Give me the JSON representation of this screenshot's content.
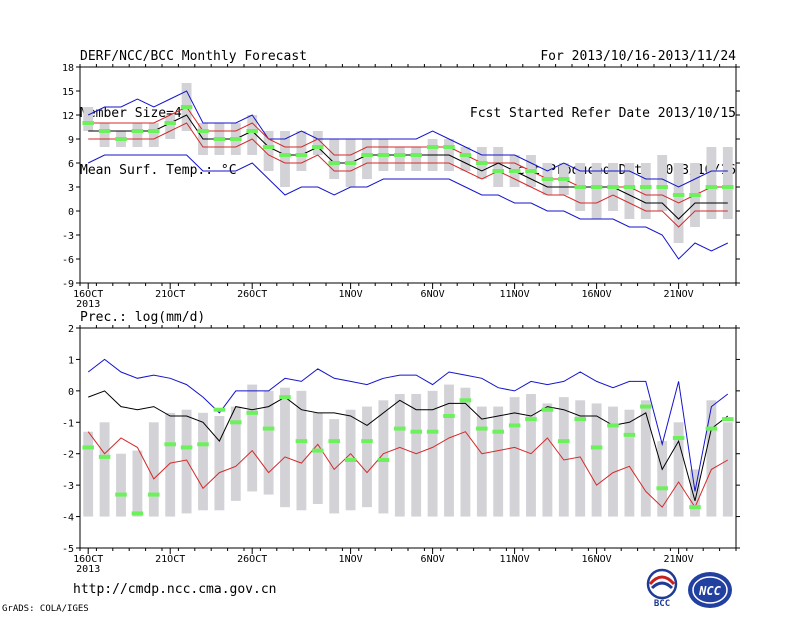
{
  "header": {
    "title": "DERF/NCC/BCC Monthly Forecast",
    "member_size": "Member Size=40",
    "variable": "Mean Surf. Temp.: °C",
    "forecast_period": "For 2013/10/16-2013/11/24",
    "started": "Fcst Started Refer Date 2013/10/15",
    "produced": "Fcst Produced Date 2013/10/16"
  },
  "footer": {
    "url": "http://cmdp.ncc.cma.gov.cn",
    "credit": "GrADS: COLA/IGES",
    "logo_bcc": "BCC",
    "logo_ncc": "NCC"
  },
  "colors": {
    "bar": "#d3d3d7",
    "median": "#000000",
    "band_inner": "#d42a2a",
    "band_outer": "#1414cc",
    "observed": "#6cf05c"
  },
  "chart_data": [
    {
      "type": "line",
      "title": "",
      "ylabel": "Mean Surf. Temp.: °C",
      "ylim": [
        -9,
        18
      ],
      "yticks": [
        -9,
        -6,
        -3,
        0,
        3,
        6,
        9,
        12,
        15,
        18
      ],
      "xticks": [
        {
          "day": 0,
          "label": "16OCT",
          "sublabel": "2013"
        },
        {
          "day": 5,
          "label": "21OCT"
        },
        {
          "day": 10,
          "label": "26OCT"
        },
        {
          "day": 16,
          "label": "1NOV"
        },
        {
          "day": 21,
          "label": "6NOV"
        },
        {
          "day": 26,
          "label": "11NOV"
        },
        {
          "day": 31,
          "label": "16NOV"
        },
        {
          "day": 36,
          "label": "21NOV"
        }
      ],
      "days": 40,
      "grid": false,
      "series": [
        {
          "key": "bar_high",
          "values": [
            13,
            11,
            10,
            11,
            11,
            12,
            16,
            11,
            11,
            11,
            12,
            10,
            10,
            10,
            10,
            9,
            9,
            9,
            9,
            8,
            8,
            9,
            9,
            8,
            8,
            8,
            7,
            7,
            6,
            6,
            6,
            6,
            6,
            6,
            6,
            7,
            6,
            6,
            8,
            8
          ]
        },
        {
          "key": "bar_low",
          "values": [
            10,
            8,
            8,
            8,
            8,
            9,
            10,
            7,
            7,
            7,
            7,
            5,
            3,
            5,
            7,
            4,
            3,
            4,
            5,
            5,
            5,
            5,
            5,
            5,
            4,
            3,
            3,
            3,
            2,
            2,
            0,
            -1,
            0,
            -1,
            -1,
            0,
            -4,
            -2,
            -1,
            -1
          ]
        },
        {
          "key": "median",
          "values": [
            10,
            10,
            10,
            10,
            10,
            11,
            12,
            9,
            9,
            9,
            10,
            8,
            7,
            7,
            8,
            6,
            6,
            7,
            7,
            7,
            7,
            7,
            7,
            6,
            5,
            6,
            5,
            4,
            3,
            3,
            3,
            3,
            3,
            2,
            1,
            1,
            -1,
            1,
            1,
            1
          ]
        },
        {
          "key": "inner_upper",
          "values": [
            11,
            11,
            11,
            11,
            11,
            12,
            13,
            10,
            10,
            10,
            11,
            9,
            8,
            8,
            9,
            7,
            7,
            8,
            8,
            8,
            8,
            8,
            8,
            7,
            6,
            6,
            6,
            5,
            4,
            4,
            3,
            3,
            3,
            3,
            2,
            2,
            1,
            2,
            3,
            3
          ]
        },
        {
          "key": "inner_lower",
          "values": [
            9,
            9,
            9,
            9,
            9,
            10,
            11,
            8,
            8,
            8,
            9,
            7,
            6,
            6,
            7,
            5,
            5,
            6,
            6,
            6,
            6,
            6,
            6,
            5,
            4,
            5,
            4,
            3,
            2,
            2,
            1,
            1,
            2,
            1,
            0,
            0,
            -2,
            0,
            0,
            0
          ]
        },
        {
          "key": "outer_upper",
          "values": [
            12,
            13,
            13,
            14,
            13,
            14,
            15,
            11,
            11,
            11,
            12,
            9,
            9,
            10,
            9,
            9,
            9,
            9,
            9,
            9,
            9,
            10,
            9,
            8,
            7,
            7,
            7,
            6,
            5,
            6,
            5,
            5,
            5,
            5,
            4,
            4,
            3,
            4,
            5,
            5
          ]
        },
        {
          "key": "outer_lower",
          "values": [
            6,
            7,
            7,
            7,
            7,
            7,
            7,
            5,
            5,
            5,
            6,
            4,
            2,
            3,
            3,
            2,
            3,
            3,
            4,
            4,
            4,
            4,
            4,
            3,
            2,
            2,
            1,
            1,
            0,
            0,
            -1,
            -1,
            -1,
            -2,
            -2,
            -3,
            -6,
            -4,
            -5,
            -4
          ]
        },
        {
          "key": "observed",
          "values": [
            11,
            10,
            9,
            10,
            10,
            11,
            13,
            10,
            9,
            9,
            10,
            8,
            7,
            7,
            8,
            6,
            6,
            7,
            7,
            7,
            7,
            8,
            8,
            7,
            6,
            5,
            5,
            5,
            4,
            4,
            3,
            3,
            3,
            3,
            3,
            3,
            2,
            2,
            3,
            3
          ]
        }
      ]
    },
    {
      "type": "line",
      "title": "",
      "ylabel": "Prec.: log(mm/d)",
      "ylim": [
        -5,
        2
      ],
      "yticks": [
        -5,
        -4,
        -3,
        -2,
        -1,
        0,
        1,
        2
      ],
      "xticks": [
        {
          "day": 0,
          "label": "16OCT",
          "sublabel": "2013"
        },
        {
          "day": 5,
          "label": "21OCT"
        },
        {
          "day": 10,
          "label": "26OCT"
        },
        {
          "day": 16,
          "label": "1NOV"
        },
        {
          "day": 21,
          "label": "6NOV"
        },
        {
          "day": 26,
          "label": "11NOV"
        },
        {
          "day": 31,
          "label": "16NOV"
        },
        {
          "day": 36,
          "label": "21NOV"
        }
      ],
      "days": 40,
      "grid": false,
      "series": [
        {
          "key": "bar_high",
          "values": [
            -1.3,
            -1.0,
            -2.0,
            -1.9,
            -1.0,
            -0.7,
            -0.6,
            -0.7,
            -0.8,
            -0.5,
            0.2,
            0.0,
            0.1,
            0.0,
            -0.7,
            -0.9,
            -0.6,
            -0.5,
            -0.3,
            -0.1,
            -0.1,
            0.0,
            0.2,
            0.1,
            -0.5,
            -0.5,
            -0.2,
            -0.1,
            -0.4,
            -0.2,
            -0.3,
            -0.4,
            -0.5,
            -0.6,
            -0.3,
            -1.6,
            -1.0,
            -2.5,
            -0.3,
            -1.0
          ]
        },
        {
          "key": "bar_low",
          "values": [
            -4.0,
            -4.0,
            -4.0,
            -4.0,
            -4.0,
            -4.0,
            -3.9,
            -3.8,
            -3.8,
            -3.5,
            -3.2,
            -3.3,
            -3.7,
            -3.8,
            -3.6,
            -3.9,
            -3.8,
            -3.7,
            -3.9,
            -4.0,
            -4.0,
            -4.0,
            -4.0,
            -4.0,
            -4.0,
            -4.0,
            -4.0,
            -4.0,
            -4.0,
            -4.0,
            -4.0,
            -4.0,
            -4.0,
            -4.0,
            -4.0,
            -4.0,
            -4.0,
            -4.0,
            -4.0,
            -4.0
          ]
        },
        {
          "key": "median",
          "values": [
            -0.2,
            0.0,
            -0.5,
            -0.6,
            -0.5,
            -0.8,
            -0.8,
            -1.0,
            -1.6,
            -0.5,
            -0.6,
            -0.5,
            -0.2,
            -0.6,
            -0.7,
            -0.7,
            -0.8,
            -1.1,
            -0.7,
            -0.3,
            -0.6,
            -0.6,
            -0.4,
            -0.4,
            -0.9,
            -0.8,
            -0.7,
            -0.8,
            -0.5,
            -0.6,
            -0.8,
            -0.8,
            -1.1,
            -1.0,
            -0.7,
            -2.5,
            -1.6,
            -3.5,
            -1.2,
            -0.8
          ]
        },
        {
          "key": "inner_lower",
          "values": [
            -1.3,
            -2.0,
            -1.5,
            -1.8,
            -2.8,
            -2.3,
            -2.2,
            -3.1,
            -2.6,
            -2.4,
            -1.9,
            -2.6,
            -2.1,
            -2.3,
            -1.7,
            -2.5,
            -2.0,
            -2.6,
            -2.0,
            -1.8,
            -2.0,
            -1.8,
            -1.5,
            -1.3,
            -2.0,
            -1.9,
            -1.8,
            -2.0,
            -1.5,
            -2.2,
            -2.1,
            -3.0,
            -2.6,
            -2.4,
            -3.2,
            -3.7,
            -2.9,
            -3.7,
            -2.5,
            -2.2
          ]
        },
        {
          "key": "outer_upper",
          "values": [
            0.6,
            1.0,
            0.6,
            0.4,
            0.5,
            0.4,
            0.2,
            -0.2,
            -0.7,
            -0.0,
            0.0,
            0.0,
            0.4,
            0.3,
            0.7,
            0.4,
            0.3,
            0.2,
            0.4,
            0.5,
            0.5,
            0.2,
            0.6,
            0.5,
            0.4,
            0.1,
            0.0,
            0.3,
            0.2,
            0.3,
            0.6,
            0.3,
            0.1,
            0.3,
            0.3,
            -1.7,
            0.3,
            -3.2,
            -0.5,
            -0.1
          ]
        },
        {
          "key": "observed",
          "values": [
            -1.8,
            -2.1,
            -3.3,
            -3.9,
            -3.3,
            -1.7,
            -1.8,
            -1.7,
            -0.6,
            -1.0,
            -0.7,
            -1.2,
            -0.2,
            -1.6,
            -1.9,
            -1.6,
            -2.2,
            -1.6,
            -2.2,
            -1.2,
            -1.3,
            -1.3,
            -0.8,
            -0.3,
            -1.2,
            -1.3,
            -1.1,
            -0.9,
            -0.6,
            -1.6,
            -0.9,
            -1.8,
            -1.1,
            -1.4,
            -0.5,
            -3.1,
            -1.5,
            -3.7,
            -1.2,
            -0.9
          ]
        }
      ]
    }
  ]
}
